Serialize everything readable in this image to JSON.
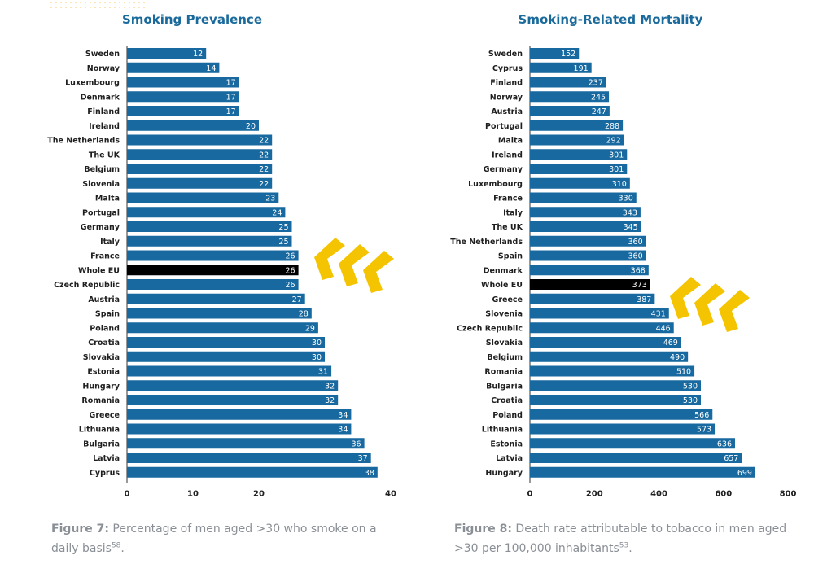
{
  "chart_data": [
    {
      "type": "bar",
      "orientation": "horizontal",
      "title": "Smoking Prevalence",
      "xlim": [
        0,
        40
      ],
      "xticks": [
        "0",
        "10",
        "20",
        "40"
      ],
      "categories": [
        "Sweden",
        "Norway",
        "Luxembourg",
        "Denmark",
        "Finland",
        "Ireland",
        "The Netherlands",
        "The UK",
        "Belgium",
        "Slovenia",
        "Malta",
        "Portugal",
        "Germany",
        "Italy",
        "France",
        "Whole EU",
        "Czech Republic",
        "Austria",
        "Spain",
        "Poland",
        "Croatia",
        "Slovakia",
        "Estonia",
        "Hungary",
        "Romania",
        "Greece",
        "Lithuania",
        "Bulgaria",
        "Latvia",
        "Cyprus"
      ],
      "values": [
        12,
        14,
        17,
        17,
        17,
        20,
        22,
        22,
        22,
        22,
        23,
        24,
        25,
        25,
        26,
        26,
        26,
        27,
        28,
        29,
        30,
        30,
        31,
        32,
        32,
        34,
        34,
        36,
        37,
        38
      ],
      "highlight": "Whole EU",
      "bar_color": "#1769a0",
      "highlight_color": "#000000",
      "caption_label": "Figure 7:",
      "caption_text": " Percentage of men aged >30 who smoke on a daily basis",
      "caption_ref": "58",
      "caption_end": "."
    },
    {
      "type": "bar",
      "orientation": "horizontal",
      "title": "Smoking-Related Mortality",
      "xlim": [
        0,
        800
      ],
      "xticks": [
        "0",
        "200",
        "400",
        "600",
        "800"
      ],
      "categories": [
        "Sweden",
        "Cyprus",
        "Finland",
        "Norway",
        "Austria",
        "Portugal",
        "Malta",
        "Ireland",
        "Germany",
        "Luxembourg",
        "France",
        "Italy",
        "The UK",
        "The Netherlands",
        "Spain",
        "Denmark",
        "Whole EU",
        "Greece",
        "Slovenia",
        "Czech Republic",
        "Slovakia",
        "Belgium",
        "Romania",
        "Bulgaria",
        "Croatia",
        "Poland",
        "Lithuania",
        "Estonia",
        "Latvia",
        "Hungary"
      ],
      "values": [
        152,
        191,
        237,
        245,
        247,
        288,
        292,
        301,
        301,
        310,
        330,
        343,
        345,
        360,
        360,
        368,
        373,
        387,
        431,
        446,
        469,
        490,
        510,
        530,
        530,
        566,
        573,
        636,
        657,
        699
      ],
      "highlight": "Whole EU",
      "bar_color": "#1769a0",
      "highlight_color": "#000000",
      "caption_label": "Figure 8:",
      "caption_text": " Death rate attributable to tobacco in men aged >30 per 100,000 inhabitants",
      "caption_ref": "53",
      "caption_end": "."
    }
  ],
  "colors": {
    "title": "#1a6a9c",
    "bar": "#1769a0",
    "highlight": "#000000",
    "accent_chevrons": "#f5c400",
    "caption": "#8a8f96"
  }
}
